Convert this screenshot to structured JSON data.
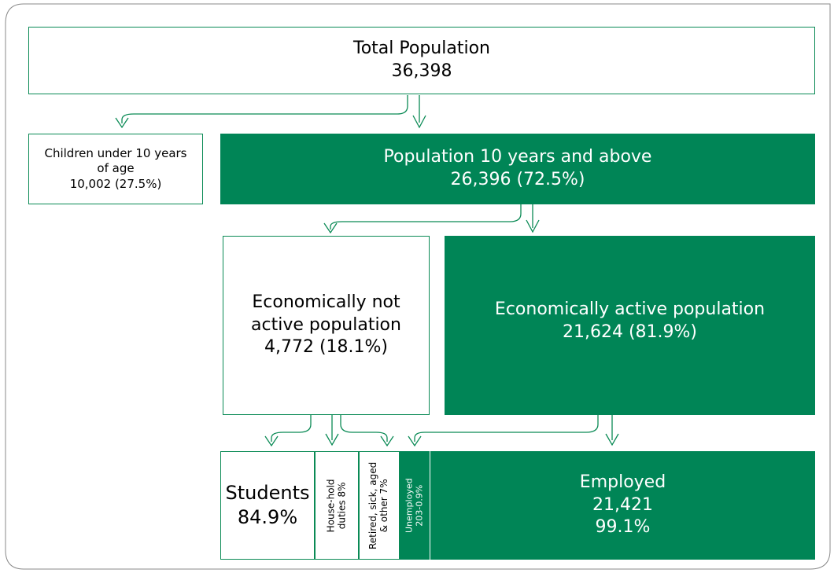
{
  "nodes": {
    "total": {
      "title": "Total Population",
      "value": "36,398"
    },
    "children": {
      "line1": "Children under 10 years",
      "line2": "of age",
      "line3": "10,002 (27.5%)"
    },
    "above10": {
      "title": "Population 10 years and above",
      "value": "26,396 (72.5%)"
    },
    "not_active": {
      "line1": "Economically not",
      "line2": "active population",
      "line3": "4,772 (18.1%)"
    },
    "active": {
      "title": "Economically active population",
      "value": "21,624 (81.9%)"
    },
    "students": {
      "title": "Students",
      "value": "84.9%"
    },
    "household": {
      "line1": "House-hold",
      "line2": "duties 8%"
    },
    "retired": {
      "line1": "Retired, sick, aged",
      "line2": "& other 7%"
    },
    "unemployed": {
      "line1": "Unemployed",
      "line2": "203-0.9%"
    },
    "employed": {
      "title": "Employed",
      "value": "21,421",
      "pct": "99.1%"
    }
  },
  "colors": {
    "green": "#008556",
    "outline": "#0a8a55"
  }
}
